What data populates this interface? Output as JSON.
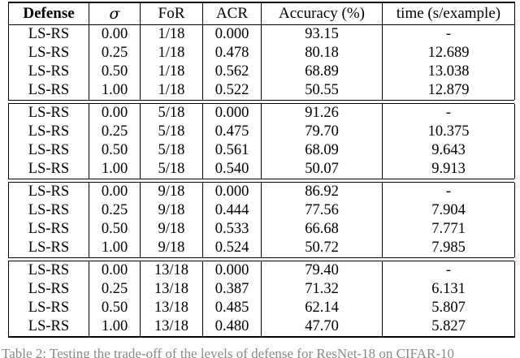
{
  "table": {
    "columns": [
      {
        "label": "Defense"
      },
      {
        "label": "σ"
      },
      {
        "label": "FoR"
      },
      {
        "label": "ACR"
      },
      {
        "label": "Accuracy (%)"
      },
      {
        "label": "time (s/example)"
      }
    ],
    "blocks": [
      [
        [
          "LS-RS",
          "0.00",
          "1/18",
          "0.000",
          "93.15",
          "-"
        ],
        [
          "LS-RS",
          "0.25",
          "1/18",
          "0.478",
          "80.18",
          "12.689"
        ],
        [
          "LS-RS",
          "0.50",
          "1/18",
          "0.562",
          "68.89",
          "13.038"
        ],
        [
          "LS-RS",
          "1.00",
          "1/18",
          "0.522",
          "50.55",
          "12.879"
        ]
      ],
      [
        [
          "LS-RS",
          "0.00",
          "5/18",
          "0.000",
          "91.26",
          "-"
        ],
        [
          "LS-RS",
          "0.25",
          "5/18",
          "0.475",
          "79.70",
          "10.375"
        ],
        [
          "LS-RS",
          "0.50",
          "5/18",
          "0.561",
          "68.09",
          "9.643"
        ],
        [
          "LS-RS",
          "1.00",
          "5/18",
          "0.540",
          "50.07",
          "9.913"
        ]
      ],
      [
        [
          "LS-RS",
          "0.00",
          "9/18",
          "0.000",
          "86.92",
          "-"
        ],
        [
          "LS-RS",
          "0.25",
          "9/18",
          "0.444",
          "77.56",
          "7.904"
        ],
        [
          "LS-RS",
          "0.50",
          "9/18",
          "0.533",
          "66.68",
          "7.771"
        ],
        [
          "LS-RS",
          "1.00",
          "9/18",
          "0.524",
          "50.72",
          "7.985"
        ]
      ],
      [
        [
          "LS-RS",
          "0.00",
          "13/18",
          "0.000",
          "79.40",
          "-"
        ],
        [
          "LS-RS",
          "0.25",
          "13/18",
          "0.387",
          "71.32",
          "6.131"
        ],
        [
          "LS-RS",
          "0.50",
          "13/18",
          "0.485",
          "62.14",
          "5.807"
        ],
        [
          "LS-RS",
          "1.00",
          "13/18",
          "0.480",
          "47.70",
          "5.827"
        ]
      ]
    ]
  },
  "caption": {
    "partial_text": "Table 2: Testing the trade-off of the levels of defense for ResNet-18 on CIFAR-10"
  },
  "colors": {
    "text": "#000000",
    "border": "#000000",
    "caption": "#8a8a8a",
    "background": "#ffffff"
  }
}
